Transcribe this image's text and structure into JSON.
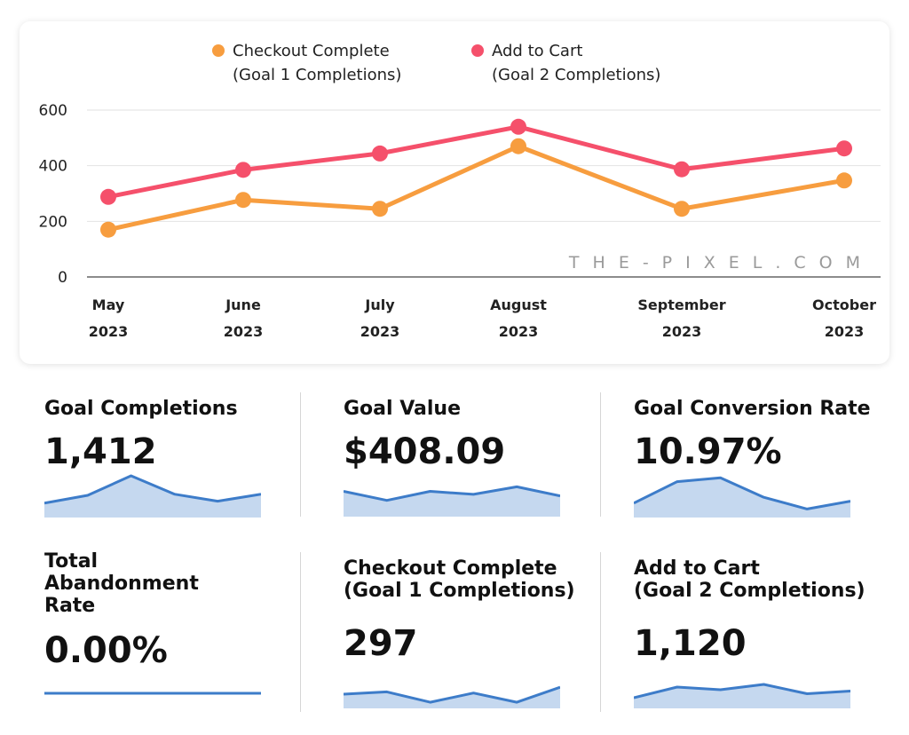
{
  "chart_data": {
    "type": "line",
    "categories": [
      "May\n2023",
      "June\n2023",
      "July\n2023",
      "August\n2023",
      "September\n2023",
      "October\n2023"
    ],
    "category_lines": [
      [
        "May",
        "2023"
      ],
      [
        "June",
        "2023"
      ],
      [
        "July",
        "2023"
      ],
      [
        "August",
        "2023"
      ],
      [
        "September",
        "2023"
      ],
      [
        "October",
        "2023"
      ]
    ],
    "series": [
      {
        "name": "Checkout Complete (Goal 1 Completions)",
        "name_lines": [
          "Checkout Complete",
          "(Goal 1 Completions)"
        ],
        "color": "#f79d3f",
        "values": [
          170,
          277,
          245,
          470,
          245,
          347
        ]
      },
      {
        "name": "Add to Cart (Goal 2 Completions)",
        "name_lines": [
          "Add to Cart",
          "(Goal 2 Completions)"
        ],
        "color": "#f5506b",
        "values": [
          288,
          385,
          444,
          540,
          387,
          462
        ]
      }
    ],
    "yticks": [
      0,
      200,
      400,
      600
    ],
    "ylim": [
      0,
      600
    ],
    "grid": true,
    "legend": "top"
  },
  "watermark": "THE-PIXEL.COM",
  "kpis": [
    {
      "title": "Goal Completions",
      "value": "1,412",
      "spark": [
        0.3,
        0.5,
        1.0,
        0.53,
        0.35,
        0.53
      ],
      "fill": true
    },
    {
      "title": "Goal Value",
      "value": "$408.09",
      "spark": [
        0.75,
        0.45,
        0.75,
        0.65,
        0.9,
        0.6
      ],
      "fill": true
    },
    {
      "title": "Goal Conversion Rate",
      "value": "10.97%",
      "spark": [
        0.3,
        0.85,
        0.95,
        0.45,
        0.15,
        0.35
      ],
      "fill": true
    },
    {
      "title": "Total\nAbandonment\nRate",
      "value": "0.00%",
      "spark": [
        0.5,
        0.5,
        0.5,
        0.5,
        0.5,
        0.5
      ],
      "fill": false
    },
    {
      "title": "Checkout Complete\n(Goal 1 Completions)",
      "value": "297",
      "spark": [
        0.5,
        0.6,
        0.15,
        0.55,
        0.15,
        0.8
      ],
      "fill": true
    },
    {
      "title": "Add to Cart\n(Goal 2 Completions)",
      "value": "1,120",
      "spark": [
        0.3,
        0.7,
        0.6,
        0.8,
        0.45,
        0.55
      ],
      "fill": true
    }
  ],
  "spark_color": "#3d7cc9",
  "spark_fill": "#c5d8ef"
}
